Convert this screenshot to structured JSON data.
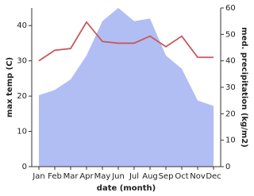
{
  "chart_data": {
    "type": "line",
    "x_label": "date (month)",
    "categories": [
      "Jan",
      "Feb",
      "Mar",
      "Apr",
      "May",
      "Jun",
      "Jul",
      "Aug",
      "Sep",
      "Oct",
      "Nov",
      "Dec"
    ],
    "series": [
      {
        "name": "max temp (C)",
        "color": "#c9585a",
        "values": [
          30,
          33,
          33.5,
          41,
          35.5,
          35,
          35,
          37,
          34,
          37,
          31,
          31
        ]
      },
      {
        "name": "med. precipitation (kg/m2)",
        "color": "#b1bef4",
        "area": true,
        "axis": "y2",
        "values": [
          27,
          29,
          33,
          42,
          55,
          60,
          55,
          56,
          42,
          37,
          25,
          23
        ]
      }
    ],
    "ylim": [
      0,
      45
    ],
    "yticks": [
      0,
      10,
      20,
      30,
      40
    ],
    "y2lim": [
      0,
      60
    ],
    "y2ticks": [
      0,
      10,
      20,
      30,
      40,
      50,
      60
    ]
  }
}
